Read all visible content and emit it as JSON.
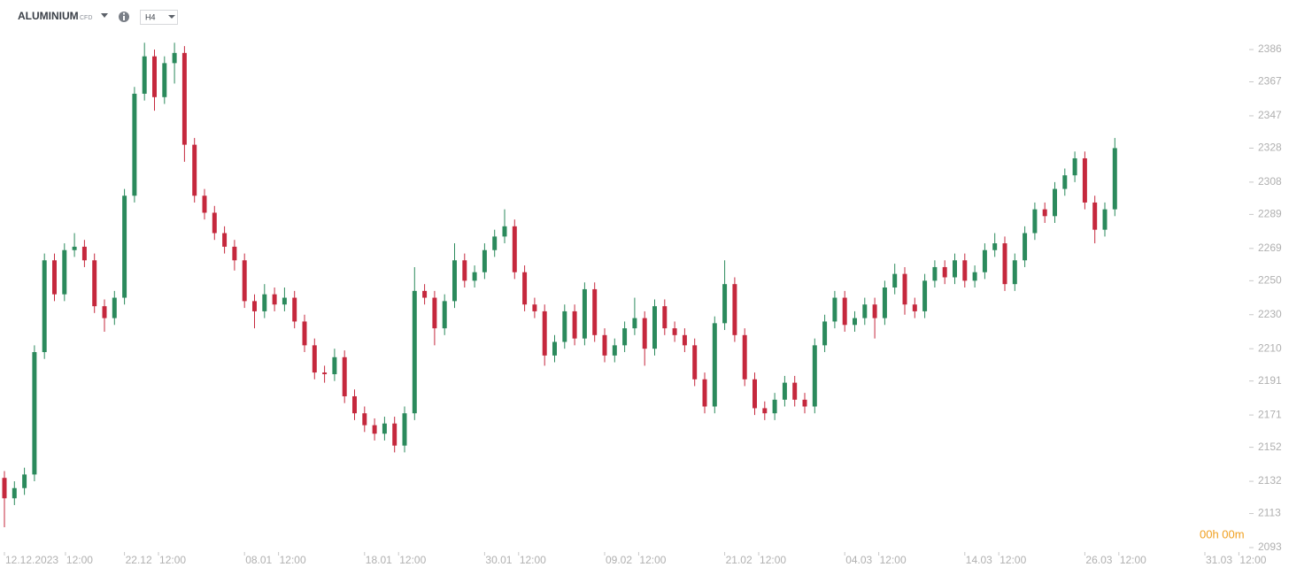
{
  "chart_data": {
    "type": "candlestick",
    "title": "ALUMINIUM",
    "subtitle": "CFD",
    "timeframe": "H4",
    "countdown": "00h 00m",
    "up_color": "#2b8a5c",
    "down_color": "#c5283d",
    "ylim": [
      2093,
      2386
    ],
    "yticks": [
      2093,
      2113,
      2132,
      2152,
      2171,
      2191,
      2210,
      2230,
      2250,
      2269,
      2289,
      2308,
      2328,
      2347,
      2367,
      2386
    ],
    "xlim": [
      0,
      128
    ],
    "xticks": [
      {
        "value": 0,
        "label": "12.12.2023"
      },
      {
        "value": 6.1,
        "label": "12:00"
      },
      {
        "value": 12,
        "label": "22.12"
      },
      {
        "value": 15.4,
        "label": "12:00"
      },
      {
        "value": 24,
        "label": "08.01"
      },
      {
        "value": 27.4,
        "label": "12:00"
      },
      {
        "value": 36,
        "label": "18.01"
      },
      {
        "value": 39.4,
        "label": "12:00"
      },
      {
        "value": 48,
        "label": "30.01"
      },
      {
        "value": 51.4,
        "label": "12:00"
      },
      {
        "value": 60,
        "label": "09.02"
      },
      {
        "value": 63.4,
        "label": "12:00"
      },
      {
        "value": 72,
        "label": "21.02"
      },
      {
        "value": 75.4,
        "label": "12:00"
      },
      {
        "value": 84,
        "label": "04.03"
      },
      {
        "value": 87.4,
        "label": "12:00"
      },
      {
        "value": 96,
        "label": "14.03"
      },
      {
        "value": 99.4,
        "label": "12:00"
      },
      {
        "value": 108,
        "label": "26.03"
      },
      {
        "value": 111.4,
        "label": "12:00"
      },
      {
        "value": 120,
        "label": "31.03"
      },
      {
        "value": 123.4,
        "label": "12:00"
      }
    ],
    "open": [
      2134,
      2122,
      2128,
      2136,
      2208,
      2262,
      2242,
      2268,
      2270,
      2262,
      2235,
      2228,
      2240,
      2300,
      2360,
      2382,
      2358,
      2378,
      2384,
      2330,
      2300,
      2290,
      2278,
      2270,
      2262,
      2238,
      2232,
      2242,
      2236,
      2240,
      2226,
      2212,
      2196,
      2195,
      2205,
      2182,
      2172,
      2165,
      2160,
      2166,
      2153,
      2172,
      2244,
      2240,
      2222,
      2238,
      2262,
      2250,
      2255,
      2268,
      2276,
      2282,
      2255,
      2236,
      2232,
      2206,
      2214,
      2232,
      2216,
      2245,
      2218,
      2206,
      2212,
      2222,
      2228,
      2210,
      2235,
      2222,
      2218,
      2212,
      2192,
      2176,
      2225,
      2248,
      2218,
      2192,
      2175,
      2172,
      2180,
      2190,
      2180,
      2176,
      2212,
      2226,
      2240,
      2224,
      2228,
      2236,
      2228,
      2246,
      2254,
      2236,
      2232,
      2250,
      2258,
      2252,
      2262,
      2250,
      2255,
      2268,
      2272,
      2248,
      2262,
      2278,
      2292,
      2288,
      2304,
      2312,
      2322,
      2296,
      2280,
      2292
    ],
    "high": [
      2138,
      2132,
      2140,
      2212,
      2266,
      2266,
      2272,
      2278,
      2274,
      2266,
      2239,
      2244,
      2304,
      2364,
      2390,
      2386,
      2382,
      2390,
      2388,
      2334,
      2304,
      2294,
      2282,
      2274,
      2266,
      2242,
      2248,
      2246,
      2246,
      2244,
      2230,
      2216,
      2200,
      2210,
      2209,
      2186,
      2176,
      2169,
      2170,
      2170,
      2176,
      2258,
      2248,
      2244,
      2242,
      2272,
      2266,
      2259,
      2272,
      2280,
      2292,
      2286,
      2259,
      2240,
      2236,
      2218,
      2236,
      2236,
      2249,
      2249,
      2222,
      2216,
      2226,
      2240,
      2232,
      2239,
      2239,
      2226,
      2222,
      2216,
      2196,
      2229,
      2262,
      2252,
      2222,
      2196,
      2179,
      2184,
      2194,
      2194,
      2184,
      2216,
      2230,
      2244,
      2244,
      2232,
      2240,
      2240,
      2250,
      2260,
      2258,
      2240,
      2254,
      2262,
      2262,
      2266,
      2266,
      2259,
      2272,
      2278,
      2276,
      2266,
      2282,
      2296,
      2296,
      2308,
      2316,
      2326,
      2326,
      2300,
      2296,
      2334
    ],
    "low": [
      2105,
      2118,
      2124,
      2132,
      2204,
      2238,
      2238,
      2264,
      2258,
      2231,
      2220,
      2224,
      2236,
      2296,
      2356,
      2350,
      2354,
      2366,
      2320,
      2296,
      2286,
      2274,
      2266,
      2256,
      2234,
      2222,
      2228,
      2232,
      2232,
      2222,
      2208,
      2192,
      2190,
      2191,
      2178,
      2168,
      2161,
      2156,
      2156,
      2149,
      2149,
      2168,
      2236,
      2212,
      2218,
      2234,
      2246,
      2246,
      2251,
      2264,
      2272,
      2251,
      2232,
      2228,
      2200,
      2202,
      2210,
      2212,
      2212,
      2214,
      2202,
      2202,
      2208,
      2218,
      2200,
      2206,
      2218,
      2214,
      2208,
      2188,
      2172,
      2172,
      2221,
      2214,
      2188,
      2171,
      2168,
      2168,
      2176,
      2176,
      2172,
      2172,
      2208,
      2222,
      2220,
      2220,
      2224,
      2216,
      2224,
      2242,
      2230,
      2228,
      2228,
      2246,
      2248,
      2248,
      2246,
      2246,
      2251,
      2264,
      2244,
      2244,
      2258,
      2274,
      2284,
      2284,
      2300,
      2308,
      2292,
      2272,
      2276,
      2288
    ],
    "close": [
      2122,
      2128,
      2136,
      2208,
      2262,
      2242,
      2268,
      2270,
      2262,
      2235,
      2228,
      2240,
      2300,
      2360,
      2382,
      2358,
      2378,
      2384,
      2330,
      2300,
      2290,
      2278,
      2270,
      2262,
      2238,
      2232,
      2242,
      2236,
      2240,
      2226,
      2212,
      2196,
      2195,
      2205,
      2182,
      2172,
      2165,
      2160,
      2166,
      2153,
      2172,
      2244,
      2240,
      2222,
      2238,
      2262,
      2250,
      2255,
      2268,
      2276,
      2282,
      2255,
      2236,
      2232,
      2206,
      2214,
      2232,
      2216,
      2245,
      2218,
      2206,
      2212,
      2222,
      2228,
      2210,
      2235,
      2222,
      2218,
      2212,
      2192,
      2176,
      2225,
      2248,
      2218,
      2192,
      2175,
      2172,
      2180,
      2190,
      2180,
      2176,
      2212,
      2226,
      2240,
      2224,
      2228,
      2236,
      2228,
      2246,
      2254,
      2236,
      2232,
      2250,
      2258,
      2252,
      2262,
      2250,
      2255,
      2268,
      2272,
      2248,
      2262,
      2278,
      2292,
      2288,
      2304,
      2312,
      2322,
      2296,
      2280,
      2292,
      2328
    ]
  }
}
